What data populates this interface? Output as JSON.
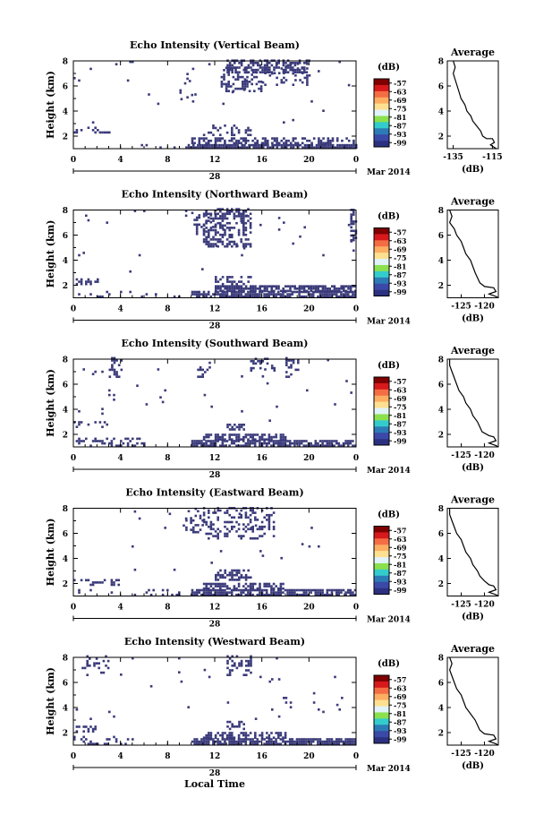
{
  "figure": {
    "x_title": "Local Time",
    "date_day": "28",
    "date_suffix": "Mar 2014",
    "colorbar_unit": "(dB)",
    "colorbar_ticks": [
      "-57",
      "-63",
      "-69",
      "-75",
      "-81",
      "-87",
      "-93",
      "-99"
    ],
    "colorbar_colors": [
      "#7f0000",
      "#d7191c",
      "#f46d43",
      "#fdae61",
      "#fee090",
      "#e0f3f8",
      "#8be04e",
      "#33cccc",
      "#2c7bb6",
      "#3a49a8",
      "#2b3080"
    ],
    "echo_color": "#3a3a7a"
  },
  "chart_data": [
    {
      "type": "heatmap",
      "title": "Echo Intensity (Vertical Beam)",
      "xlabel": "",
      "ylabel": "Height (km)",
      "xticks": [
        "0",
        "4",
        "8",
        "12",
        "16",
        "20",
        "0"
      ],
      "yticks": [
        "2",
        "4",
        "6",
        "8"
      ],
      "xlim": [
        0,
        24
      ],
      "ylim": [
        1,
        8
      ],
      "echo_regions": [
        {
          "x": [
            0,
            24
          ],
          "y": [
            1.0,
            1.3
          ],
          "density": 0.05
        },
        {
          "x": [
            9.5,
            24
          ],
          "y": [
            1.0,
            1.35
          ],
          "density": 0.85
        },
        {
          "x": [
            10,
            16
          ],
          "y": [
            1.35,
            1.8
          ],
          "density": 0.5
        },
        {
          "x": [
            16,
            24
          ],
          "y": [
            1.35,
            1.8
          ],
          "density": 0.45
        },
        {
          "x": [
            11,
            15
          ],
          "y": [
            2.0,
            2.8
          ],
          "density": 0.3
        },
        {
          "x": [
            0,
            3
          ],
          "y": [
            2.2,
            2.7
          ],
          "density": 0.25
        },
        {
          "x": [
            12.5,
            16
          ],
          "y": [
            5.5,
            7.5
          ],
          "density": 0.35
        },
        {
          "x": [
            16,
            20
          ],
          "y": [
            6.0,
            7.8
          ],
          "density": 0.2
        },
        {
          "x": [
            13,
            20
          ],
          "y": [
            7.0,
            8.0
          ],
          "density": 0.55
        },
        {
          "x": [
            9,
            10
          ],
          "y": [
            5.0,
            7.0
          ],
          "density": 0.15
        },
        {
          "x": [
            0,
            24
          ],
          "y": [
            3,
            8
          ],
          "density": 0.006
        }
      ],
      "average": {
        "title": "Average",
        "xlabel": "(dB)",
        "xticks": [
          "-135",
          "-115"
        ],
        "xlim": [
          -138,
          -112
        ],
        "yticks": [
          "2",
          "4",
          "6",
          "8"
        ],
        "ylim": [
          1,
          8
        ],
        "profile": [
          [
            -135,
            8.0
          ],
          [
            -134,
            7.5
          ],
          [
            -135,
            7.0
          ],
          [
            -134,
            6.5
          ],
          [
            -133,
            6.0
          ],
          [
            -132,
            5.5
          ],
          [
            -131,
            5.0
          ],
          [
            -129,
            4.5
          ],
          [
            -128,
            4.0
          ],
          [
            -126,
            3.6
          ],
          [
            -125,
            3.2
          ],
          [
            -123,
            2.8
          ],
          [
            -121,
            2.4
          ],
          [
            -120,
            2.0
          ],
          [
            -118,
            1.8
          ],
          [
            -115,
            1.8
          ],
          [
            -114,
            1.5
          ],
          [
            -116,
            1.3
          ],
          [
            -114,
            1.1
          ],
          [
            -113,
            1.0
          ]
        ]
      }
    },
    {
      "type": "heatmap",
      "title": "Echo Intensity (Northward Beam)",
      "xlabel": "",
      "ylabel": "Height (km)",
      "xticks": [
        "0",
        "4",
        "8",
        "12",
        "16",
        "20",
        "0"
      ],
      "yticks": [
        "2",
        "4",
        "6",
        "8"
      ],
      "xlim": [
        0,
        24
      ],
      "ylim": [
        1,
        8
      ],
      "echo_regions": [
        {
          "x": [
            10,
            24
          ],
          "y": [
            1.0,
            1.45
          ],
          "density": 0.8
        },
        {
          "x": [
            12,
            24
          ],
          "y": [
            1.45,
            1.9
          ],
          "density": 0.75
        },
        {
          "x": [
            0,
            9
          ],
          "y": [
            1.0,
            1.4
          ],
          "density": 0.12
        },
        {
          "x": [
            0,
            2
          ],
          "y": [
            2.0,
            2.5
          ],
          "density": 0.3
        },
        {
          "x": [
            12,
            15
          ],
          "y": [
            2.0,
            2.6
          ],
          "density": 0.35
        },
        {
          "x": [
            11,
            15
          ],
          "y": [
            5.0,
            8.0
          ],
          "density": 0.45
        },
        {
          "x": [
            10,
            12
          ],
          "y": [
            6.0,
            8.0
          ],
          "density": 0.3
        },
        {
          "x": [
            23.5,
            24
          ],
          "y": [
            5.5,
            8.0
          ],
          "density": 0.6
        },
        {
          "x": [
            0,
            24
          ],
          "y": [
            3,
            8
          ],
          "density": 0.01
        }
      ],
      "average": {
        "title": "Average",
        "xlabel": "(dB)",
        "xticks": [
          "-125",
          "-120"
        ],
        "xlim": [
          -128,
          -117
        ],
        "yticks": [
          "2",
          "4",
          "6",
          "8"
        ],
        "ylim": [
          1,
          8
        ],
        "profile": [
          [
            -127.5,
            8.0
          ],
          [
            -127,
            7.5
          ],
          [
            -127.5,
            7.0
          ],
          [
            -126.5,
            6.5
          ],
          [
            -126,
            6.0
          ],
          [
            -125,
            5.5
          ],
          [
            -124.5,
            5.0
          ],
          [
            -124,
            4.5
          ],
          [
            -123,
            4.0
          ],
          [
            -122.5,
            3.5
          ],
          [
            -122,
            3.0
          ],
          [
            -121.5,
            2.6
          ],
          [
            -121,
            2.2
          ],
          [
            -120,
            1.9
          ],
          [
            -118,
            1.8
          ],
          [
            -117.5,
            1.5
          ],
          [
            -119,
            1.3
          ],
          [
            -117.5,
            1.1
          ],
          [
            -117,
            1.0
          ]
        ]
      }
    },
    {
      "type": "heatmap",
      "title": "Echo Intensity (Southward Beam)",
      "xlabel": "",
      "ylabel": "Height (km)",
      "xticks": [
        "0",
        "4",
        "8",
        "12",
        "16",
        "20",
        "0"
      ],
      "yticks": [
        "2",
        "4",
        "6",
        "8"
      ],
      "xlim": [
        0,
        24
      ],
      "ylim": [
        1,
        8
      ],
      "echo_regions": [
        {
          "x": [
            10,
            24
          ],
          "y": [
            1.0,
            1.5
          ],
          "density": 0.75
        },
        {
          "x": [
            11,
            18
          ],
          "y": [
            1.5,
            2.0
          ],
          "density": 0.6
        },
        {
          "x": [
            0,
            6
          ],
          "y": [
            1.0,
            1.6
          ],
          "density": 0.3
        },
        {
          "x": [
            0,
            3
          ],
          "y": [
            2.5,
            3.0
          ],
          "density": 0.25
        },
        {
          "x": [
            13,
            14.5
          ],
          "y": [
            2.3,
            2.8
          ],
          "density": 0.6
        },
        {
          "x": [
            3,
            4
          ],
          "y": [
            6.5,
            8.0
          ],
          "density": 0.45
        },
        {
          "x": [
            15,
            17
          ],
          "y": [
            7.0,
            8.0
          ],
          "density": 0.35
        },
        {
          "x": [
            18,
            19
          ],
          "y": [
            6.5,
            8.0
          ],
          "density": 0.4
        },
        {
          "x": [
            10.5,
            11.5
          ],
          "y": [
            6.5,
            8.0
          ],
          "density": 0.2
        },
        {
          "x": [
            0,
            24
          ],
          "y": [
            3,
            8
          ],
          "density": 0.006
        }
      ],
      "average": {
        "title": "Average",
        "xlabel": "(dB)",
        "xticks": [
          "-125",
          "-120"
        ],
        "xlim": [
          -128,
          -117
        ],
        "yticks": [
          "2",
          "4",
          "6",
          "8"
        ],
        "ylim": [
          1,
          8
        ],
        "profile": [
          [
            -127.5,
            8.0
          ],
          [
            -127.5,
            7.5
          ],
          [
            -127,
            7.0
          ],
          [
            -126.5,
            6.5
          ],
          [
            -126,
            6.0
          ],
          [
            -125.5,
            5.5
          ],
          [
            -124.5,
            5.0
          ],
          [
            -124,
            4.5
          ],
          [
            -123,
            4.0
          ],
          [
            -122.5,
            3.5
          ],
          [
            -121.5,
            3.0
          ],
          [
            -121,
            2.6
          ],
          [
            -120.5,
            2.2
          ],
          [
            -119,
            1.9
          ],
          [
            -118,
            1.8
          ],
          [
            -117.5,
            1.5
          ],
          [
            -119,
            1.3
          ],
          [
            -117.5,
            1.1
          ],
          [
            -117,
            1.0
          ]
        ]
      }
    },
    {
      "type": "heatmap",
      "title": "Echo Intensity (Eastward Beam)",
      "xlabel": "",
      "ylabel": "Height (km)",
      "xticks": [
        "0",
        "4",
        "8",
        "12",
        "16",
        "20",
        "0"
      ],
      "yticks": [
        "2",
        "4",
        "6",
        "8"
      ],
      "xlim": [
        0,
        24
      ],
      "ylim": [
        1,
        8
      ],
      "echo_regions": [
        {
          "x": [
            10,
            24
          ],
          "y": [
            1.0,
            1.5
          ],
          "density": 0.8
        },
        {
          "x": [
            11,
            18
          ],
          "y": [
            1.5,
            1.9
          ],
          "density": 0.6
        },
        {
          "x": [
            0,
            9
          ],
          "y": [
            1.0,
            1.4
          ],
          "density": 0.1
        },
        {
          "x": [
            0,
            4
          ],
          "y": [
            1.8,
            2.3
          ],
          "density": 0.3
        },
        {
          "x": [
            12,
            15
          ],
          "y": [
            2.2,
            3.0
          ],
          "density": 0.45
        },
        {
          "x": [
            11,
            17
          ],
          "y": [
            5.5,
            8.0
          ],
          "density": 0.3
        },
        {
          "x": [
            9.5,
            11
          ],
          "y": [
            6.0,
            8.0
          ],
          "density": 0.2
        },
        {
          "x": [
            0,
            24
          ],
          "y": [
            3,
            8
          ],
          "density": 0.01
        }
      ],
      "average": {
        "title": "Average",
        "xlabel": "(dB)",
        "xticks": [
          "-125",
          "-120"
        ],
        "xlim": [
          -128,
          -117
        ],
        "yticks": [
          "2",
          "4",
          "6",
          "8"
        ],
        "ylim": [
          1,
          8
        ],
        "profile": [
          [
            -127.5,
            8.0
          ],
          [
            -127.5,
            7.5
          ],
          [
            -127,
            7.0
          ],
          [
            -126.5,
            6.5
          ],
          [
            -126,
            6.0
          ],
          [
            -125,
            5.5
          ],
          [
            -124.5,
            5.0
          ],
          [
            -124,
            4.5
          ],
          [
            -123,
            4.0
          ],
          [
            -122.5,
            3.5
          ],
          [
            -121.5,
            3.0
          ],
          [
            -121,
            2.6
          ],
          [
            -120,
            2.2
          ],
          [
            -119,
            1.9
          ],
          [
            -118,
            1.8
          ],
          [
            -117.5,
            1.5
          ],
          [
            -119,
            1.3
          ],
          [
            -117.5,
            1.1
          ],
          [
            -117,
            1.0
          ]
        ]
      }
    },
    {
      "type": "heatmap",
      "title": "Echo Intensity (Westward Beam)",
      "xlabel": "Local Time",
      "ylabel": "Height (km)",
      "xticks": [
        "0",
        "4",
        "8",
        "12",
        "16",
        "20",
        "0"
      ],
      "yticks": [
        "2",
        "4",
        "6",
        "8"
      ],
      "xlim": [
        0,
        24
      ],
      "ylim": [
        1,
        8
      ],
      "echo_regions": [
        {
          "x": [
            10,
            24
          ],
          "y": [
            1.0,
            1.5
          ],
          "density": 0.8
        },
        {
          "x": [
            11,
            18
          ],
          "y": [
            1.5,
            2.0
          ],
          "density": 0.6
        },
        {
          "x": [
            0,
            5
          ],
          "y": [
            1.0,
            1.6
          ],
          "density": 0.25
        },
        {
          "x": [
            0,
            2
          ],
          "y": [
            2.0,
            2.5
          ],
          "density": 0.3
        },
        {
          "x": [
            13,
            14.5
          ],
          "y": [
            2.2,
            2.8
          ],
          "density": 0.5
        },
        {
          "x": [
            13,
            15
          ],
          "y": [
            6.5,
            8.0
          ],
          "density": 0.35
        },
        {
          "x": [
            0.5,
            3
          ],
          "y": [
            6.5,
            8.0
          ],
          "density": 0.15
        },
        {
          "x": [
            0,
            24
          ],
          "y": [
            3,
            8
          ],
          "density": 0.008
        }
      ],
      "average": {
        "title": "Average",
        "xlabel": "(dB)",
        "xticks": [
          "-125",
          "-120"
        ],
        "xlim": [
          -128,
          -117
        ],
        "yticks": [
          "2",
          "4",
          "6",
          "8"
        ],
        "ylim": [
          1,
          8
        ],
        "profile": [
          [
            -127.5,
            8.0
          ],
          [
            -127,
            7.5
          ],
          [
            -127.5,
            7.0
          ],
          [
            -127,
            6.5
          ],
          [
            -126.5,
            6.0
          ],
          [
            -126,
            5.5
          ],
          [
            -125,
            5.0
          ],
          [
            -124.5,
            4.5
          ],
          [
            -124,
            4.0
          ],
          [
            -123,
            3.5
          ],
          [
            -122,
            3.0
          ],
          [
            -121.5,
            2.6
          ],
          [
            -121,
            2.2
          ],
          [
            -120,
            1.9
          ],
          [
            -118,
            1.8
          ],
          [
            -117.5,
            1.5
          ],
          [
            -119,
            1.3
          ],
          [
            -117.5,
            1.1
          ],
          [
            -117,
            1.0
          ]
        ]
      }
    }
  ]
}
